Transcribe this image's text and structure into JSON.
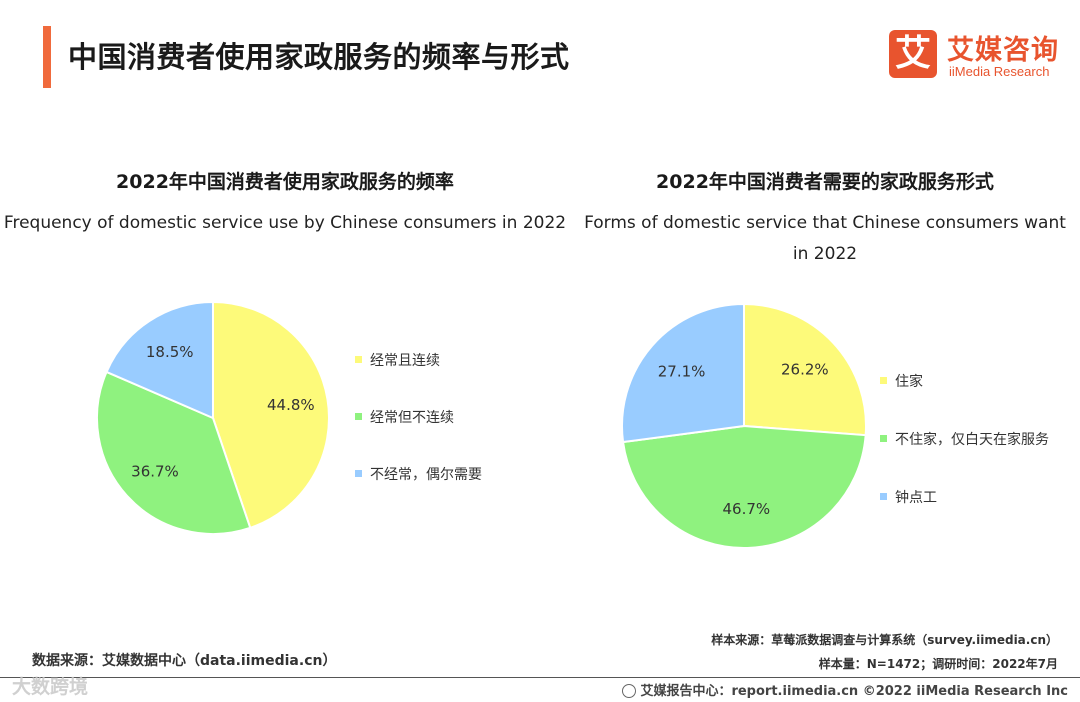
{
  "header": {
    "title": "中国消费者使用家政服务的频率与形式",
    "logo_mark": "艾",
    "logo_cn": "艾媒咨询",
    "logo_en": "iiMedia Research"
  },
  "chart_data": [
    {
      "type": "pie",
      "title": "2022年中国消费者使用家政服务的频率",
      "subtitle": "Frequency of domestic service use by Chinese consumers in 2022",
      "categories": [
        "经常且连续",
        "经常但不连续",
        "不经常，偶尔需要"
      ],
      "values": [
        44.8,
        36.7,
        18.5
      ],
      "labels": [
        "44.8%",
        "36.7%",
        "18.5%"
      ],
      "colors": [
        "#fdfa7a",
        "#8ff27f",
        "#99ccff"
      ],
      "legend_position": "right"
    },
    {
      "type": "pie",
      "title": "2022年中国消费者需要的家政服务形式",
      "subtitle": "Forms of domestic service that Chinese consumers want in 2022",
      "categories": [
        "住家",
        "不住家，仅白天在家服务",
        "钟点工"
      ],
      "values": [
        26.2,
        46.7,
        27.1
      ],
      "labels": [
        "26.2%",
        "46.7%",
        "27.1%"
      ],
      "colors": [
        "#fdfa7a",
        "#8ff27f",
        "#99ccff"
      ],
      "legend_position": "right"
    }
  ],
  "footer": {
    "source": "数据来源：艾媒数据中心（data.iimedia.cn）",
    "sample_source": "样本来源：草莓派数据调查与计算系统（survey.iimedia.cn）",
    "sample_size": "样本量：N=1472；调研时间：2022年7月",
    "copyright": "艾媒报告中心：report.iimedia.cn  ©2022  iiMedia Research  Inc",
    "watermark": "大数跨境"
  }
}
